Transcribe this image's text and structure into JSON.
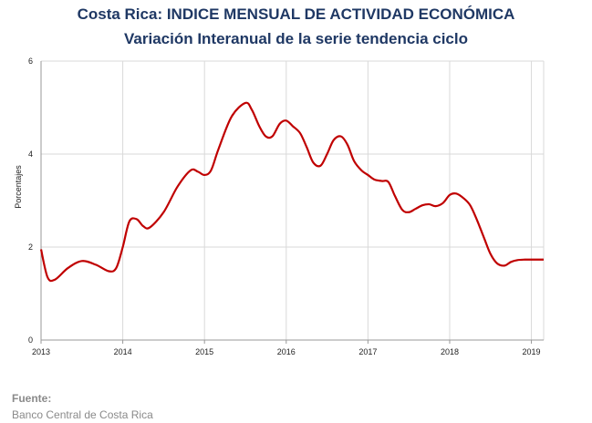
{
  "header": {
    "title": "Costa Rica: INDICE MENSUAL DE ACTIVIDAD ECONÓMICA",
    "subtitle": "Variación Interanual de la serie tendencia ciclo"
  },
  "footer": {
    "label": "Fuente:",
    "source": "Banco Central de Costa Rica"
  },
  "chart_data": {
    "type": "line",
    "title": "Costa Rica: INDICE MENSUAL DE ACTIVIDAD ECONÓMICA",
    "subtitle": "Variación Interanual de la serie tendencia ciclo",
    "xlabel": "",
    "ylabel": "Porcentajes",
    "xlim": [
      2013,
      2019.15
    ],
    "ylim": [
      0,
      6
    ],
    "yticks": [
      0,
      2,
      4,
      6
    ],
    "xticks": [
      "2013",
      "2014",
      "2015",
      "2016",
      "2017",
      "2018",
      "2019"
    ],
    "grid": true,
    "legend": "none",
    "line_color": "#c00000",
    "grid_color": "#d9d9d9",
    "series": [
      {
        "x": [
          2013.0,
          2013.08,
          2013.17,
          2013.33,
          2013.5,
          2013.67,
          2013.83,
          2013.92,
          2014.0,
          2014.08,
          2014.17,
          2014.25,
          2014.33,
          2014.5,
          2014.67,
          2014.83,
          2014.92,
          2015.0,
          2015.08,
          2015.17,
          2015.33,
          2015.5,
          2015.58,
          2015.67,
          2015.75,
          2015.83,
          2015.92,
          2016.0,
          2016.08,
          2016.17,
          2016.25,
          2016.33,
          2016.42,
          2016.5,
          2016.58,
          2016.67,
          2016.75,
          2016.83,
          2016.92,
          2017.0,
          2017.08,
          2017.17,
          2017.25,
          2017.33,
          2017.42,
          2017.5,
          2017.58,
          2017.67,
          2017.75,
          2017.83,
          2017.92,
          2018.0,
          2018.08,
          2018.17,
          2018.25,
          2018.33,
          2018.42,
          2018.5,
          2018.58,
          2018.67,
          2018.75,
          2018.83,
          2018.92,
          2019.0,
          2019.08,
          2019.15
        ],
        "values": [
          1.95,
          1.35,
          1.3,
          1.55,
          1.7,
          1.62,
          1.48,
          1.55,
          2.0,
          2.55,
          2.6,
          2.45,
          2.42,
          2.75,
          3.3,
          3.65,
          3.62,
          3.55,
          3.65,
          4.1,
          4.8,
          5.1,
          4.95,
          4.6,
          4.38,
          4.38,
          4.65,
          4.72,
          4.6,
          4.45,
          4.15,
          3.82,
          3.75,
          4.0,
          4.3,
          4.38,
          4.2,
          3.85,
          3.65,
          3.55,
          3.45,
          3.42,
          3.4,
          3.1,
          2.8,
          2.75,
          2.82,
          2.9,
          2.92,
          2.88,
          2.95,
          3.12,
          3.15,
          3.05,
          2.9,
          2.6,
          2.2,
          1.85,
          1.65,
          1.6,
          1.68,
          1.72,
          1.73,
          1.73,
          1.73,
          1.73
        ]
      }
    ]
  }
}
